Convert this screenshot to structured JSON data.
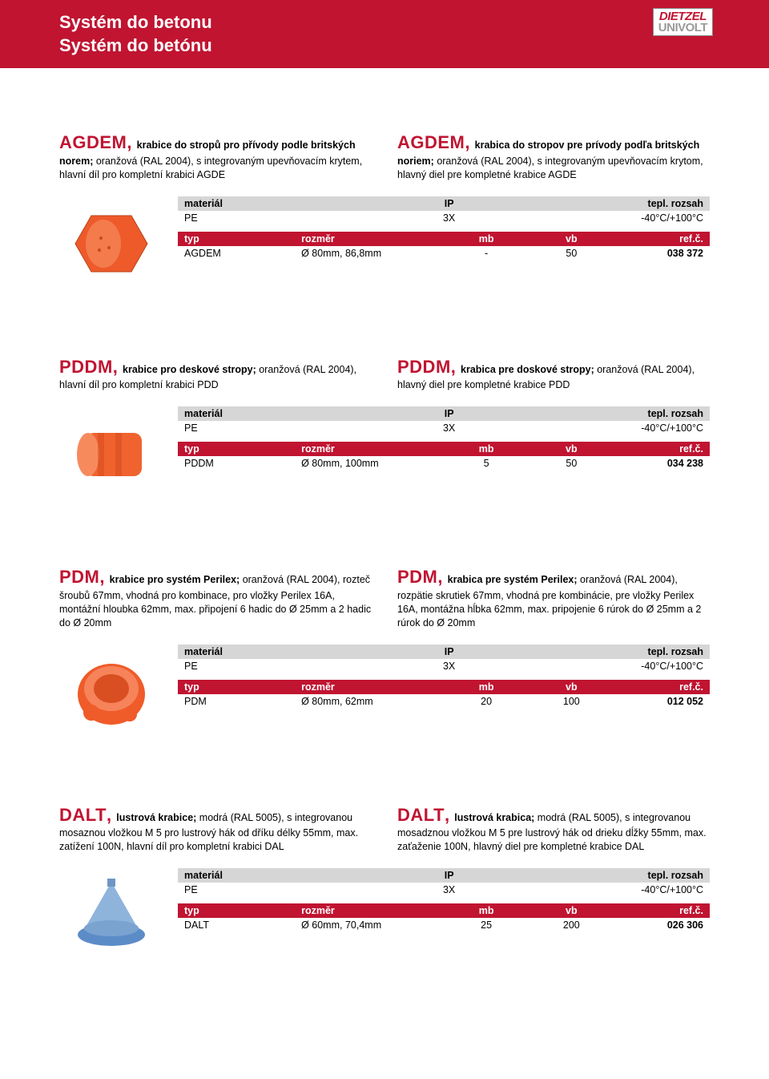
{
  "header": {
    "title_cz": "Systém do betonu",
    "title_sk": "Systém do betónu",
    "logo_top": "DIETZEL",
    "logo_bot": "UNIVOLT"
  },
  "labels": {
    "material": "materiál",
    "ip": "IP",
    "temp_range": "tepl. rozsah",
    "typ": "typ",
    "rozmer": "rozměr",
    "mb": "mb",
    "vb": "vb",
    "ref": "ref.č."
  },
  "common": {
    "pe": "PE",
    "ip3x": "3X",
    "temp": "-40°C/+100°C"
  },
  "products": [
    {
      "code": "AGDEM",
      "desc_cz_bold": "krabice do stropů pro přívody podle britských norem;",
      "desc_cz": " oranžová (RAL 2004), s integrovaným upevňovacím krytem, hlavní díl pro kompletní krabici AGDE",
      "desc_sk_bold": "krabica do stropov pre prívody podľa britských noriem;",
      "desc_sk": " oranžová (RAL 2004), s integrovaným upevňovacím krytom, hlavný diel pre kompletné krabice AGDE",
      "row": {
        "typ": "AGDEM",
        "rozmer": "Ø 80mm, 86,8mm",
        "mb": "-",
        "vb": "50",
        "ref": "038 372"
      },
      "shape": "hexcap",
      "color": "#ee5a2a"
    },
    {
      "code": "PDDM",
      "desc_cz_bold": "krabice pro deskové stropy;",
      "desc_cz": " oranžová (RAL 2004), hlavní díl pro kompletní krabici PDD",
      "desc_sk_bold": "krabica pre doskové stropy;",
      "desc_sk": " oranžová (RAL 2004), hlavný diel pre kompletné krabice PDD",
      "row": {
        "typ": "PDDM",
        "rozmer": "Ø 80mm, 100mm",
        "mb": "5",
        "vb": "50",
        "ref": "034 238"
      },
      "shape": "cyl",
      "color": "#f0632f"
    },
    {
      "code": "PDM",
      "desc_cz_bold": "krabice pro systém Perilex;",
      "desc_cz": " oranžová (RAL 2004), rozteč šroubů 67mm, vhodná pro kombinace, pro vložky Perilex 16A, montážní hloubka 62mm, max. připojení 6 hadic do Ø 25mm a 2 hadic do Ø 20mm",
      "desc_sk_bold": "krabica pre systém Perilex;",
      "desc_sk": " oranžová (RAL 2004), rozpätie skrutiek 67mm, vhodná pre kombinácie, pre vložky Perilex 16A, montážna hĺbka 62mm, max. pripojenie 6 rúrok do Ø 25mm a 2 rúrok do Ø 20mm",
      "row": {
        "typ": "PDM",
        "rozmer": "Ø 80mm, 62mm",
        "mb": "20",
        "vb": "100",
        "ref": "012 052"
      },
      "shape": "round",
      "color": "#ef5b29"
    },
    {
      "code": "DALT",
      "desc_cz_bold": "lustrová krabice;",
      "desc_cz": " modrá (RAL 5005), s integrovanou mosaznou vložkou M 5 pro lustrový hák od dříku délky 55mm, max. zatížení 100N, hlavní díl pro kompletní krabici DAL",
      "desc_sk_bold": "lustrová krabica;",
      "desc_sk": " modrá (RAL 5005), s integrovanou mosadznou vložkou M 5 pre lustrový hák od drieku dĺžky 55mm, max. zaťaženie 100N, hlavný diel pre kompletné krabice DAL",
      "row": {
        "typ": "DALT",
        "rozmer": "Ø 60mm, 70,4mm",
        "mb": "25",
        "vb": "200",
        "ref": "026 306"
      },
      "shape": "cone",
      "color": "#5c8cc8"
    }
  ]
}
